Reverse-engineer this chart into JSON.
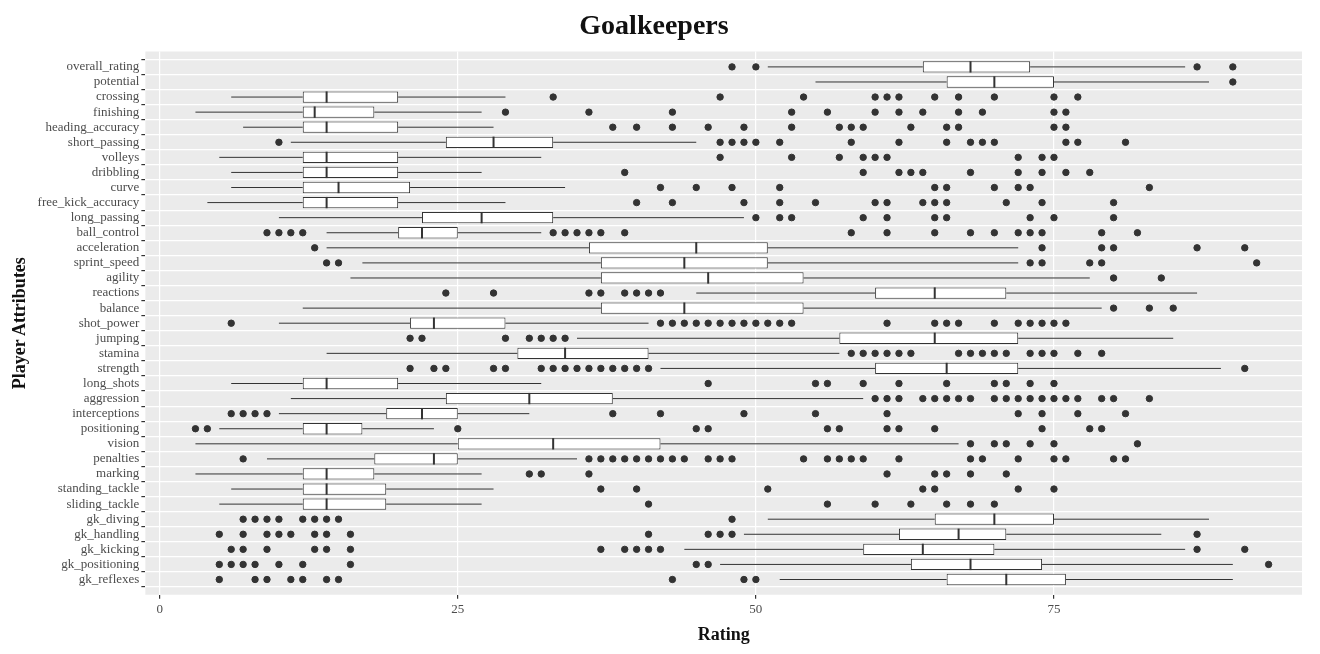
{
  "chart_data": {
    "type": "box",
    "title": "Goalkeepers",
    "xlabel": "Rating",
    "ylabel": "Player Attributes",
    "orientation": "horizontal",
    "categories": [
      "overall_rating",
      "potential",
      "crossing",
      "finishing",
      "heading_accuracy",
      "short_passing",
      "volleys",
      "dribbling",
      "curve",
      "free_kick_accuracy",
      "long_passing",
      "ball_control",
      "acceleration",
      "sprint_speed",
      "agility",
      "reactions",
      "balance",
      "shot_power",
      "jumping",
      "stamina",
      "strength",
      "long_shots",
      "aggression",
      "interceptions",
      "positioning",
      "vision",
      "penalties",
      "marking",
      "standing_tackle",
      "sliding_tackle",
      "gk_diving",
      "gk_handling",
      "gk_kicking",
      "gk_positioning",
      "gk_reflexes"
    ],
    "boxes": [
      {
        "low": 51,
        "q1": 64,
        "median": 68,
        "q3": 73,
        "high": 86,
        "outliers": [
          48,
          50,
          87,
          90
        ]
      },
      {
        "low": 55,
        "q1": 66,
        "median": 70,
        "q3": 75,
        "high": 88,
        "outliers": [
          90
        ]
      },
      {
        "low": 6,
        "q1": 12,
        "median": 14,
        "q3": 20,
        "high": 29,
        "outliers": [
          33,
          47,
          54,
          60,
          61,
          62,
          65,
          67,
          70,
          75,
          77
        ]
      },
      {
        "low": 3,
        "q1": 12,
        "median": 13,
        "q3": 18,
        "high": 27,
        "outliers": [
          29,
          36,
          43,
          53,
          56,
          60,
          62,
          64,
          67,
          69,
          75,
          76
        ]
      },
      {
        "low": 7,
        "q1": 12,
        "median": 14,
        "q3": 20,
        "high": 28,
        "outliers": [
          38,
          40,
          43,
          46,
          49,
          53,
          57,
          58,
          59,
          63,
          66,
          67,
          75,
          76
        ]
      },
      {
        "low": 11,
        "q1": 24,
        "median": 28,
        "q3": 33,
        "high": 45,
        "outliers": [
          10,
          47,
          48,
          49,
          50,
          52,
          58,
          62,
          66,
          68,
          69,
          70,
          76,
          77,
          81
        ]
      },
      {
        "low": 5,
        "q1": 12,
        "median": 14,
        "q3": 20,
        "high": 32,
        "outliers": [
          47,
          53,
          57,
          59,
          60,
          61,
          72,
          74,
          75
        ]
      },
      {
        "low": 6,
        "q1": 12,
        "median": 14,
        "q3": 20,
        "high": 27,
        "outliers": [
          39,
          59,
          62,
          63,
          64,
          68,
          72,
          74,
          76,
          78
        ]
      },
      {
        "low": 6,
        "q1": 12,
        "median": 15,
        "q3": 21,
        "high": 34,
        "outliers": [
          42,
          45,
          48,
          52,
          65,
          66,
          70,
          72,
          73,
          83
        ]
      },
      {
        "low": 4,
        "q1": 12,
        "median": 14,
        "q3": 20,
        "high": 29,
        "outliers": [
          40,
          43,
          49,
          52,
          55,
          60,
          61,
          64,
          65,
          66,
          71,
          74,
          80
        ]
      },
      {
        "low": 10,
        "q1": 22,
        "median": 27,
        "q3": 33,
        "high": 49,
        "outliers": [
          50,
          52,
          53,
          59,
          61,
          65,
          66,
          73,
          75,
          80
        ]
      },
      {
        "low": 14,
        "q1": 20,
        "median": 22,
        "q3": 25,
        "high": 32,
        "outliers": [
          9,
          10,
          11,
          12,
          33,
          34,
          35,
          36,
          37,
          39,
          58,
          61,
          65,
          68,
          70,
          72,
          73,
          74,
          79,
          82
        ]
      },
      {
        "low": 14,
        "q1": 36,
        "median": 45,
        "q3": 51,
        "high": 72,
        "outliers": [
          13,
          74,
          79,
          80,
          87,
          91
        ]
      },
      {
        "low": 17,
        "q1": 37,
        "median": 44,
        "q3": 51,
        "high": 72,
        "outliers": [
          14,
          15,
          73,
          74,
          78,
          79,
          92
        ]
      },
      {
        "low": 16,
        "q1": 37,
        "median": 46,
        "q3": 54,
        "high": 78,
        "outliers": [
          80,
          84
        ]
      },
      {
        "low": 45,
        "q1": 60,
        "median": 65,
        "q3": 71,
        "high": 87,
        "outliers": [
          24,
          28,
          36,
          37,
          39,
          40,
          41,
          42
        ]
      },
      {
        "low": 12,
        "q1": 37,
        "median": 44,
        "q3": 54,
        "high": 79,
        "outliers": [
          80,
          83,
          85
        ]
      },
      {
        "low": 10,
        "q1": 21,
        "median": 23,
        "q3": 29,
        "high": 41,
        "outliers": [
          6,
          42,
          43,
          44,
          45,
          46,
          47,
          48,
          49,
          50,
          51,
          52,
          53,
          61,
          65,
          66,
          67,
          70,
          72,
          73,
          74,
          75,
          76
        ]
      },
      {
        "low": 35,
        "q1": 57,
        "median": 65,
        "q3": 72,
        "high": 85,
        "outliers": [
          21,
          22,
          29,
          31,
          32,
          33,
          34
        ]
      },
      {
        "low": 14,
        "q1": 30,
        "median": 34,
        "q3": 41,
        "high": 57,
        "outliers": [
          58,
          59,
          60,
          61,
          62,
          63,
          67,
          68,
          69,
          70,
          71,
          73,
          74,
          75,
          77,
          79
        ]
      },
      {
        "low": 42,
        "q1": 60,
        "median": 66,
        "q3": 72,
        "high": 89,
        "outliers": [
          21,
          23,
          24,
          28,
          29,
          32,
          33,
          34,
          35,
          36,
          37,
          38,
          39,
          40,
          41,
          91
        ]
      },
      {
        "low": 6,
        "q1": 12,
        "median": 14,
        "q3": 20,
        "high": 32,
        "outliers": [
          46,
          55,
          56,
          59,
          62,
          66,
          70,
          71,
          73,
          75
        ]
      },
      {
        "low": 11,
        "q1": 24,
        "median": 31,
        "q3": 38,
        "high": 59,
        "outliers": [
          60,
          61,
          62,
          64,
          65,
          66,
          67,
          68,
          70,
          71,
          72,
          73,
          74,
          75,
          76,
          77,
          79,
          80,
          83
        ]
      },
      {
        "low": 10,
        "q1": 19,
        "median": 22,
        "q3": 25,
        "high": 31,
        "outliers": [
          6,
          7,
          8,
          9,
          38,
          42,
          49,
          55,
          61,
          72,
          74,
          77,
          81
        ]
      },
      {
        "low": 5,
        "q1": 12,
        "median": 14,
        "q3": 17,
        "high": 23,
        "outliers": [
          3,
          4,
          25,
          45,
          46,
          56,
          57,
          61,
          62,
          65,
          74,
          78,
          79
        ]
      },
      {
        "low": 3,
        "q1": 25,
        "median": 33,
        "q3": 42,
        "high": 67,
        "outliers": [
          68,
          70,
          71,
          73,
          75,
          82
        ]
      },
      {
        "low": 9,
        "q1": 18,
        "median": 23,
        "q3": 25,
        "high": 35,
        "outliers": [
          7,
          36,
          37,
          38,
          39,
          40,
          41,
          42,
          43,
          44,
          46,
          47,
          48,
          54,
          56,
          57,
          58,
          59,
          62,
          68,
          69,
          72,
          75,
          76,
          80,
          81
        ]
      },
      {
        "low": 3,
        "q1": 12,
        "median": 14,
        "q3": 18,
        "high": 27,
        "outliers": [
          31,
          32,
          36,
          61,
          65,
          66,
          68,
          71
        ]
      },
      {
        "low": 6,
        "q1": 12,
        "median": 14,
        "q3": 19,
        "high": 28,
        "outliers": [
          37,
          40,
          51,
          64,
          65,
          72,
          75
        ]
      },
      {
        "low": 5,
        "q1": 12,
        "median": 14,
        "q3": 19,
        "high": 27,
        "outliers": [
          41,
          56,
          60,
          63,
          66,
          68,
          70
        ]
      },
      {
        "low": 51,
        "q1": 65,
        "median": 70,
        "q3": 75,
        "high": 88,
        "outliers": [
          7,
          8,
          9,
          10,
          12,
          13,
          14,
          15,
          48
        ]
      },
      {
        "low": 49,
        "q1": 62,
        "median": 67,
        "q3": 71,
        "high": 84,
        "outliers": [
          5,
          7,
          9,
          10,
          11,
          13,
          14,
          16,
          41,
          46,
          47,
          48,
          87
        ]
      },
      {
        "low": 44,
        "q1": 59,
        "median": 64,
        "q3": 70,
        "high": 86,
        "outliers": [
          6,
          7,
          9,
          13,
          14,
          16,
          37,
          39,
          40,
          41,
          42,
          87,
          91
        ]
      },
      {
        "low": 47,
        "q1": 63,
        "median": 68,
        "q3": 74,
        "high": 90,
        "outliers": [
          5,
          6,
          7,
          8,
          10,
          12,
          16,
          45,
          46,
          93
        ]
      },
      {
        "low": 52,
        "q1": 66,
        "median": 71,
        "q3": 76,
        "high": 90,
        "outliers": [
          5,
          8,
          9,
          11,
          12,
          14,
          15,
          43,
          49,
          50
        ]
      }
    ],
    "xlim": [
      -1.2,
      95.8
    ],
    "xticks": [
      0,
      25,
      50,
      75
    ],
    "grid": true
  }
}
